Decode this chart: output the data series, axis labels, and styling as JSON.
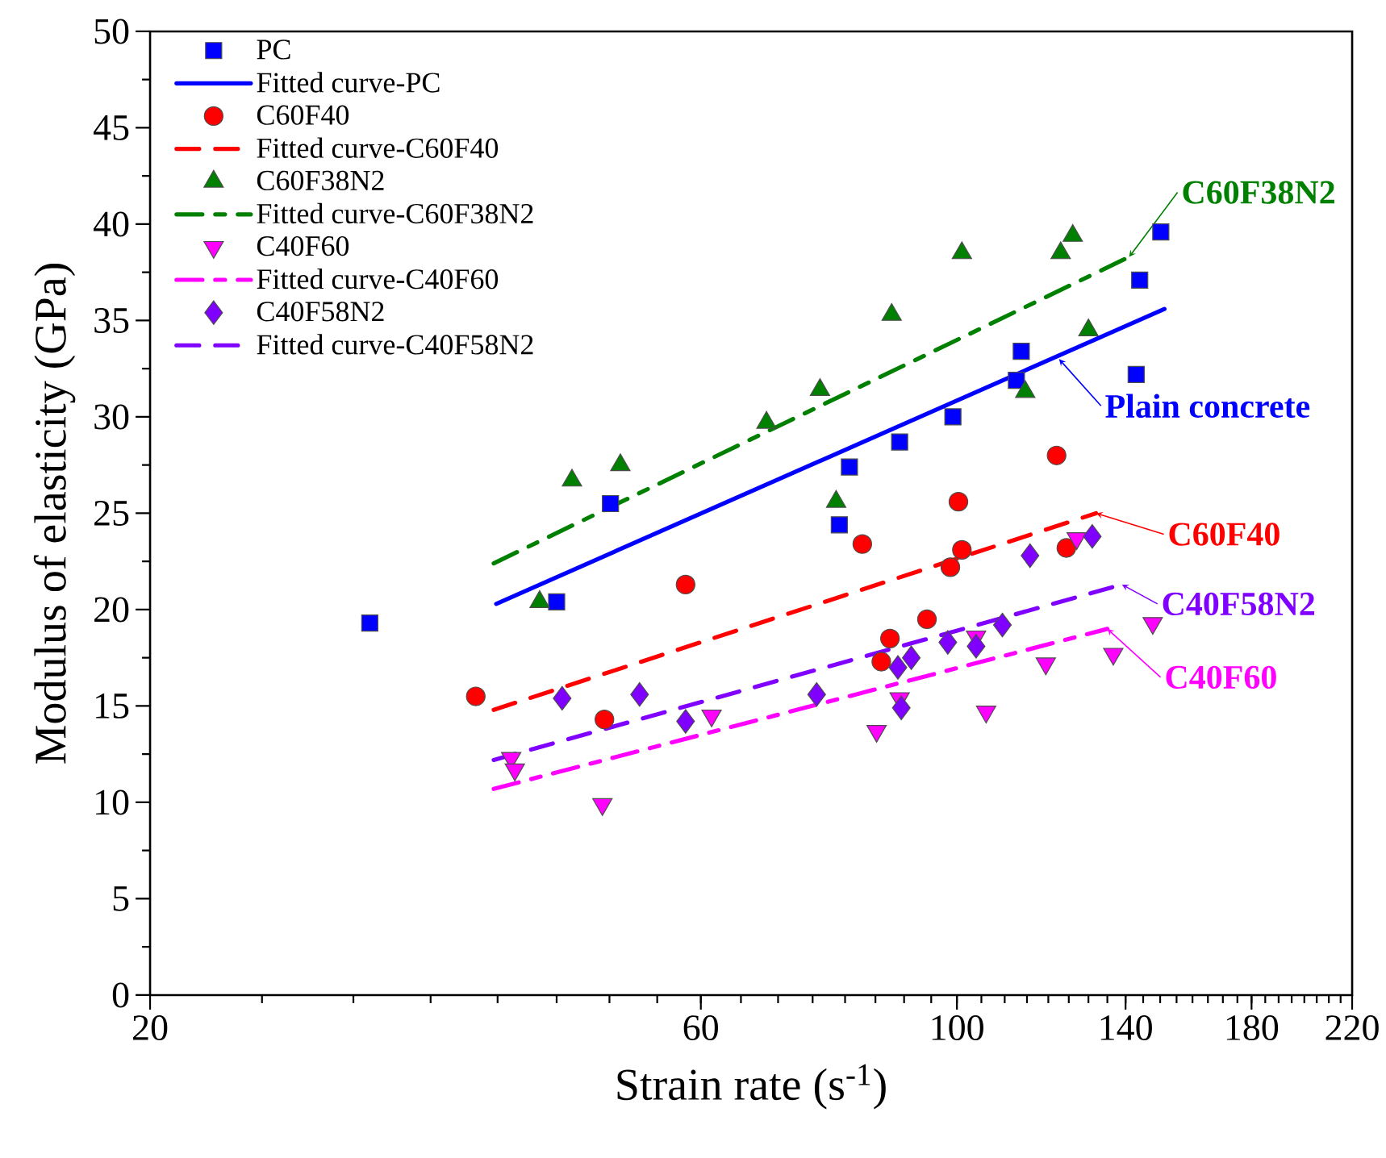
{
  "chart_data": {
    "type": "scatter",
    "xlabel": "Strain rate (s$^{-1}$)",
    "ylabel": "Modulus of elasticity (GPa)",
    "log": "x",
    "xlim": [
      20,
      220
    ],
    "ylim": [
      0,
      50
    ],
    "xticks": [
      20,
      60,
      100,
      140,
      180,
      220
    ],
    "yticks": [
      0,
      5,
      10,
      15,
      20,
      25,
      30,
      35,
      40,
      45,
      50
    ],
    "legend": "top left",
    "series": [
      {
        "name": "PC",
        "color": "#0000ff",
        "marker": "square",
        "x": [
          31.0,
          45.0,
          50.1,
          79.1,
          80.7,
          89.2,
          99.2,
          112.6,
          113.7,
          143,
          144,
          150.2
        ],
        "values": [
          19.3,
          20.4,
          25.5,
          24.4,
          27.4,
          28.7,
          30.0,
          31.9,
          33.4,
          32.2,
          37.1,
          39.6
        ]
      },
      {
        "name": "Fitted curve-PC",
        "type": "line",
        "color": "#0000ff",
        "line_style": "solid",
        "x": [
          39.9,
          151.3
        ],
        "values": [
          20.3,
          35.6
        ]
      },
      {
        "name": "C60F40",
        "color": "#ff0000",
        "marker": "circle",
        "x": [
          38.3,
          49.5,
          58.2,
          82.8,
          86.0,
          87.5,
          94.2,
          98.7,
          100.3,
          101,
          122,
          124.4
        ],
        "values": [
          15.5,
          14.3,
          21.3,
          23.4,
          17.3,
          18.5,
          19.5,
          22.2,
          25.6,
          23.1,
          28.0,
          23.2
        ]
      },
      {
        "name": "Fitted curve-C60F40",
        "type": "line",
        "color": "#ff0000",
        "line_style": "dashed",
        "x": [
          39.7,
          132
        ],
        "values": [
          14.8,
          25.0
        ]
      },
      {
        "name": "C60F38N2",
        "color": "#008000",
        "marker": "triangle",
        "x": [
          43.5,
          46.4,
          51.1,
          68.4,
          76.1,
          78.6,
          87.8,
          101,
          114.6,
          123,
          126,
          130
        ],
        "values": [
          20.4,
          26.7,
          27.5,
          29.7,
          31.4,
          25.6,
          35.3,
          38.5,
          31.3,
          38.5,
          39.4,
          34.5
        ]
      },
      {
        "name": "Fitted curve-C60F38N2",
        "type": "line",
        "color": "#008000",
        "line_style": "dashdot",
        "x": [
          39.7,
          141
        ],
        "values": [
          22.4,
          38.3
        ]
      },
      {
        "name": "C40F60",
        "color": "#ff00ff",
        "marker": "triangle-down",
        "x": [
          41.1,
          41.4,
          49.3,
          61.3,
          85.2,
          89.2,
          103.9,
          106,
          119.4,
          127,
          136.6,
          147.8
        ],
        "values": [
          12.3,
          11.7,
          9.9,
          14.5,
          13.7,
          15.4,
          18.6,
          14.7,
          17.2,
          23.7,
          17.7,
          19.3
        ]
      },
      {
        "name": "Fitted curve-C40F60",
        "type": "line",
        "color": "#ff00ff",
        "line_style": "dashdot",
        "x": [
          39.7,
          135
        ],
        "values": [
          10.7,
          19.0
        ]
      },
      {
        "name": "C40F58N2",
        "color": "#8000ff",
        "marker": "diamond",
        "x": [
          45.5,
          53.1,
          58.2,
          75.6,
          88.9,
          89.5,
          91.3,
          98.2,
          103.9,
          109.5,
          115.7,
          131
        ],
        "values": [
          15.4,
          15.6,
          14.2,
          15.6,
          17.0,
          14.9,
          17.5,
          18.3,
          18.1,
          19.2,
          22.8,
          23.8
        ]
      },
      {
        "name": "Fitted curve-C40F58N2",
        "type": "line",
        "color": "#8000ff",
        "line_style": "dashed",
        "x": [
          39.7,
          139
        ],
        "values": [
          12.2,
          21.3
        ]
      }
    ],
    "annotations": [
      {
        "text": "C60F38N2",
        "x": 141,
        "y": 38.3
      },
      {
        "text": "Plain concrete",
        "x": 122.6,
        "y": 33.0
      },
      {
        "text": "C60F40",
        "x": 132,
        "y": 25.0
      },
      {
        "text": "C40F58N2",
        "x": 139,
        "y": 21.3
      },
      {
        "text": "C40F60",
        "x": 135,
        "y": 19.0
      }
    ]
  }
}
